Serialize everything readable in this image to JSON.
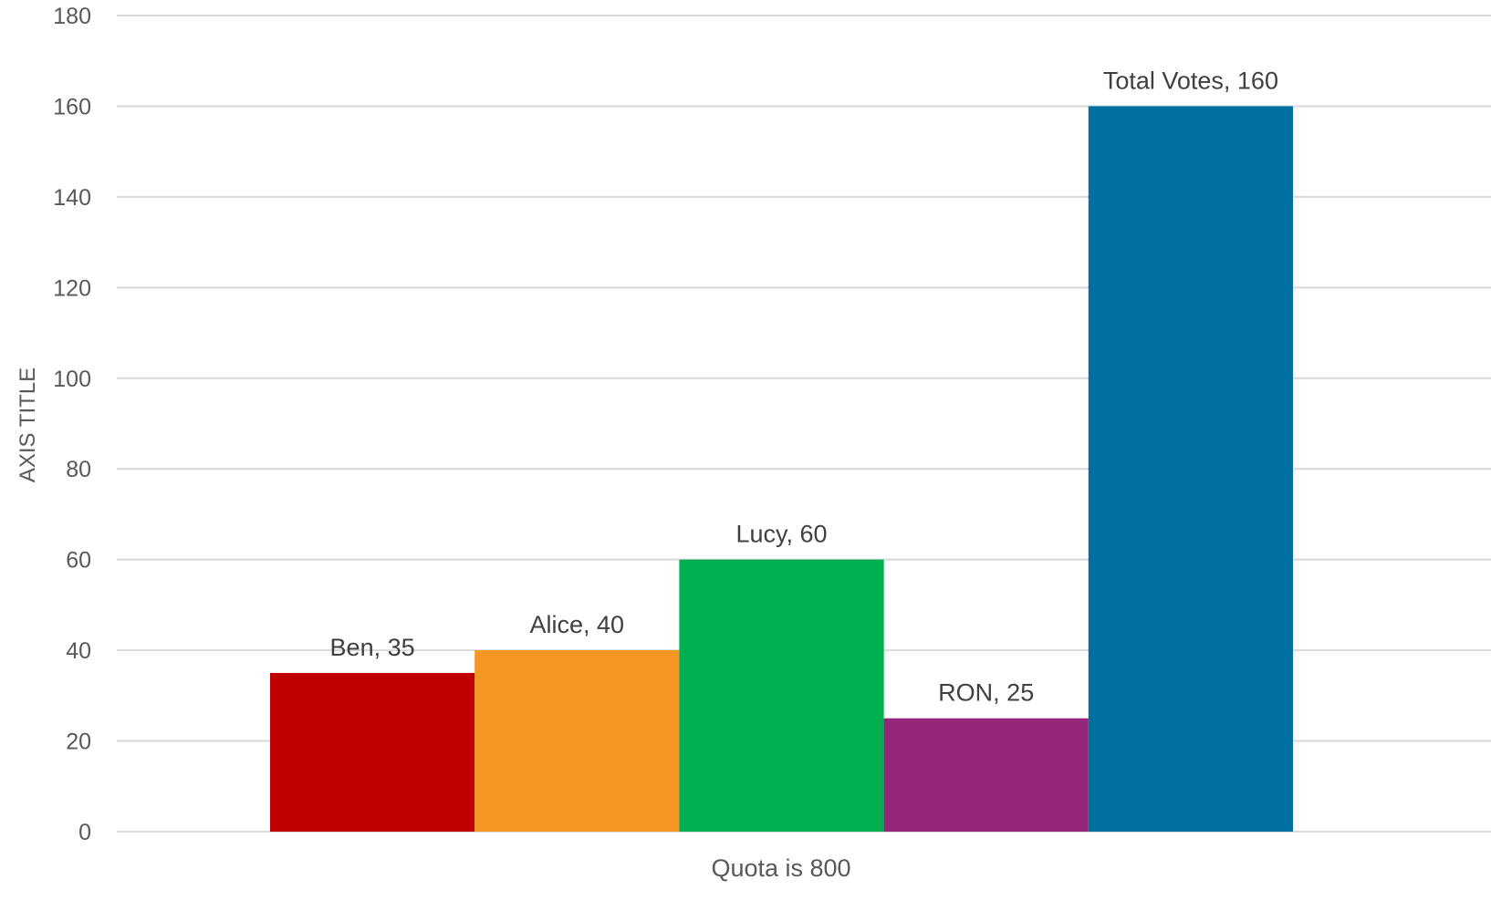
{
  "chart_data": {
    "type": "bar",
    "title": "",
    "xlabel": "",
    "ylabel": "AXIS TITLE",
    "ylim": [
      0,
      180
    ],
    "yticks": [
      0,
      20,
      40,
      60,
      80,
      100,
      120,
      140,
      160,
      180
    ],
    "categories": [
      "Quota is 800"
    ],
    "grid": true,
    "series": [
      {
        "name": "Ben",
        "values": [
          35
        ],
        "color": "#C00000",
        "data_label": "Ben, 35"
      },
      {
        "name": "Alice",
        "values": [
          40
        ],
        "color": "#F59623",
        "data_label": "Alice, 40"
      },
      {
        "name": "Lucy",
        "values": [
          60
        ],
        "color": "#00AF50",
        "data_label": "Lucy, 60"
      },
      {
        "name": "RON",
        "values": [
          25
        ],
        "color": "#92277C",
        "data_label": "RON, 25"
      },
      {
        "name": "Total Votes",
        "values": [
          160
        ],
        "color": "#0070A1",
        "data_label": "Total Votes, 160"
      }
    ]
  }
}
